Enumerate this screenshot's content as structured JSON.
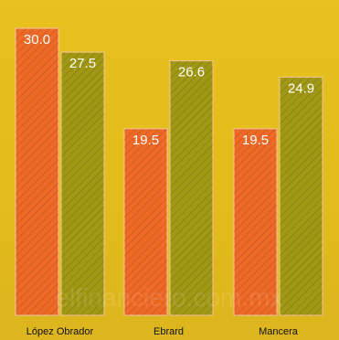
{
  "chart_data": {
    "type": "bar",
    "categories": [
      "López Obrador",
      "Ebrard",
      "Mancera"
    ],
    "series": [
      {
        "values": [
          30.0,
          19.5,
          19.5
        ],
        "color": "#ef6a26"
      },
      {
        "values": [
          27.5,
          26.6,
          24.9
        ],
        "color": "#a19815"
      }
    ],
    "value_labels": [
      [
        "30.0",
        "19.5",
        "19.5"
      ],
      [
        "27.5",
        "26.6",
        "24.9"
      ]
    ],
    "ylim": [
      0,
      30
    ],
    "grid": false,
    "legend": "none",
    "title": "",
    "xlabel": "",
    "ylabel": "",
    "watermark": "elfinanciero.com.mx"
  },
  "colors": {
    "background": "#e3bb1c",
    "bar_edge": "#f5c6a0",
    "hatch": "#000000"
  }
}
